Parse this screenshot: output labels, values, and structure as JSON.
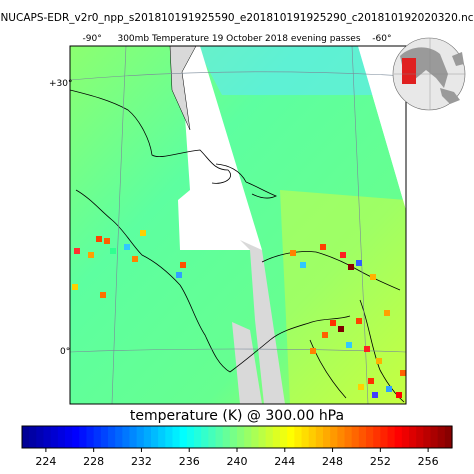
{
  "header": {
    "file_title": "NUCAPS-EDR_v2r0_npp_s201810191925590_e201810191925290_c201810192020320.nc",
    "map_title": "300mb Temperature 19 October 2018 evening passes",
    "lon_label_left": "-90°",
    "lon_label_right": "-60°",
    "lat_label_top": "+30°",
    "lat_label_bottom": "0°"
  },
  "colorbar": {
    "label": "temperature (K) @ 300.00 hPa",
    "ticks": [
      "224",
      "228",
      "232",
      "236",
      "240",
      "244",
      "248",
      "252",
      "256"
    ],
    "range": [
      222,
      258
    ],
    "colors": [
      "#00008f",
      "#0000ff",
      "#0080ff",
      "#00ffff",
      "#80ff80",
      "#ffff00",
      "#ff8000",
      "#ff0000",
      "#800000"
    ]
  },
  "chart_data": {
    "type": "heatmap",
    "title": "300mb Temperature 19 October 2018 evening passes",
    "variable": "temperature (K) @ 300.00 hPa",
    "value_range": [
      222,
      258
    ],
    "colorbar_ticks": [
      224,
      228,
      232,
      236,
      240,
      244,
      248,
      252,
      256
    ],
    "lon_ticks": [
      "-90°",
      "-60°"
    ],
    "lat_ticks": [
      "+30°",
      "0°"
    ],
    "typical_value": 242
  }
}
